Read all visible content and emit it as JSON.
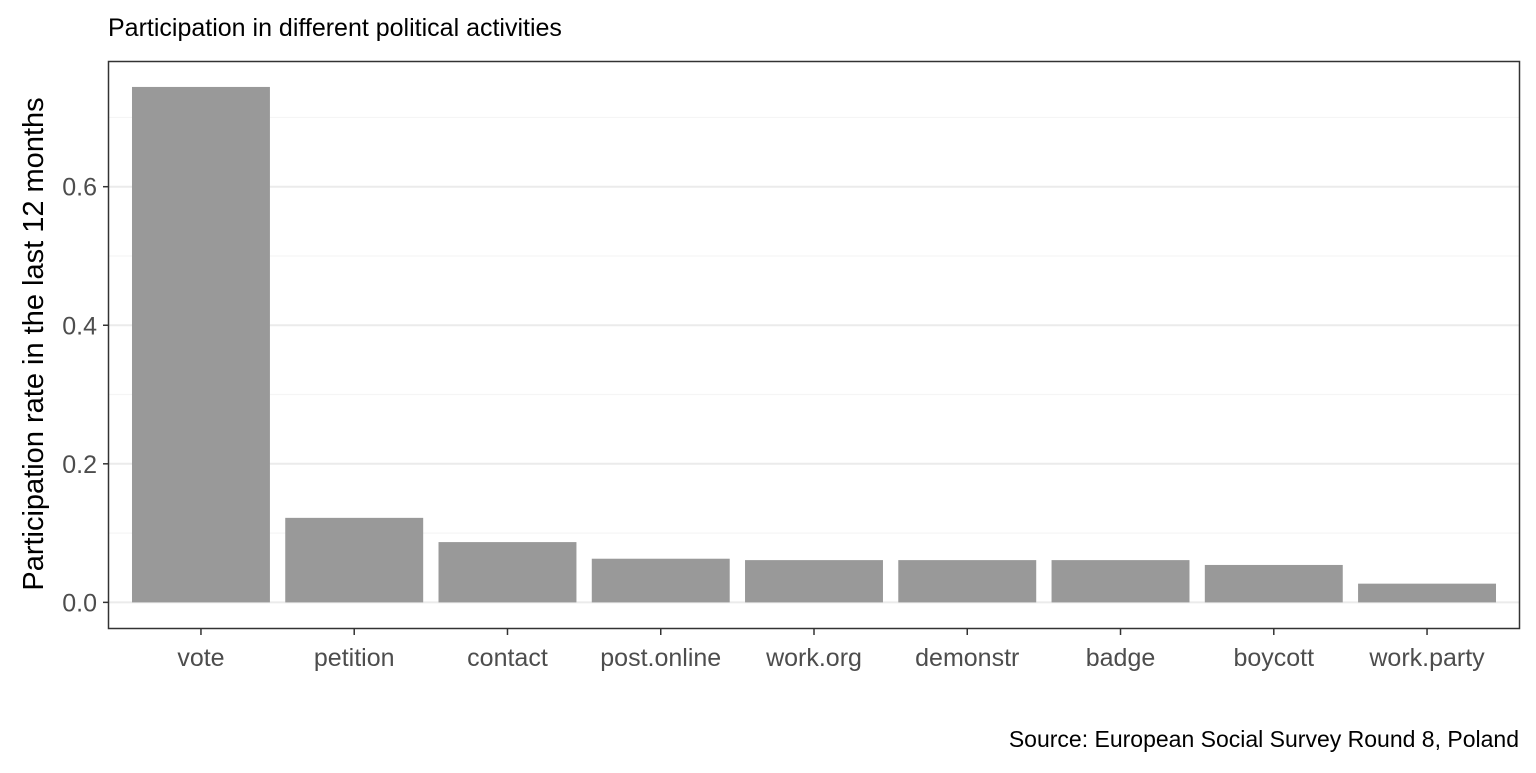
{
  "chart_data": {
    "type": "bar",
    "title": "Participation in different political activities",
    "xlabel": "",
    "ylabel": "Participation rate in the last 12 months",
    "caption": "Source: European Social Survey Round 8, Poland",
    "categories": [
      "vote",
      "petition",
      "contact",
      "post.online",
      "work.org",
      "demonstr",
      "badge",
      "boycott",
      "work.party"
    ],
    "values": [
      0.744,
      0.122,
      0.087,
      0.063,
      0.061,
      0.061,
      0.061,
      0.054,
      0.027
    ],
    "yticks": [
      0.0,
      0.2,
      0.4,
      0.6
    ],
    "ytick_labels": [
      "0.0",
      "0.2",
      "0.4",
      "0.6"
    ],
    "ylim": [
      -0.037,
      0.78
    ],
    "grid": true,
    "legend": "none",
    "colors": {
      "bar": "#999999",
      "grid_major": "#ebebeb",
      "grid_minor": "#f5f5f5",
      "panel_border": "#333333",
      "tick_text": "#4d4d4d",
      "text": "#000000"
    }
  }
}
